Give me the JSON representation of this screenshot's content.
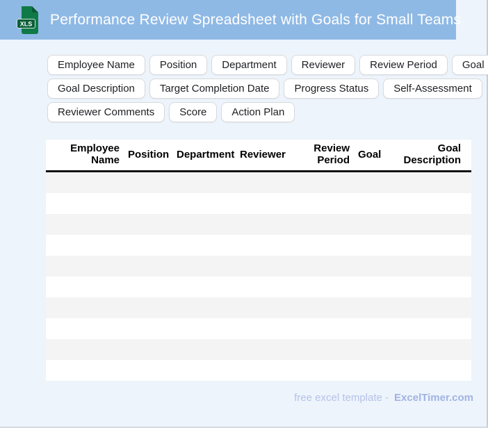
{
  "header": {
    "title": "Performance Review Spreadsheet with Goals for Small Teams",
    "icon_label": "XLS",
    "bg_color": "#8fb9e5",
    "icon_color": "#0f7a47"
  },
  "chips": [
    "Employee Name",
    "Position",
    "Department",
    "Reviewer",
    "Review Period",
    "Goal",
    "Goal Description",
    "Target Completion Date",
    "Progress Status",
    "Self-Assessment",
    "Reviewer Comments",
    "Score",
    "Action Plan"
  ],
  "table": {
    "columns": [
      "Employee Name",
      "Position",
      "Department",
      "Reviewer",
      "Review Period",
      "Goal",
      "Goal Description"
    ],
    "empty_row_count": 10,
    "stripe_color": "#f4f4f5"
  },
  "footer": {
    "text": "free excel template -",
    "brand": "ExcelTimer.com",
    "text_color": "#b5c2ea",
    "brand_color": "#a2b3e3"
  }
}
